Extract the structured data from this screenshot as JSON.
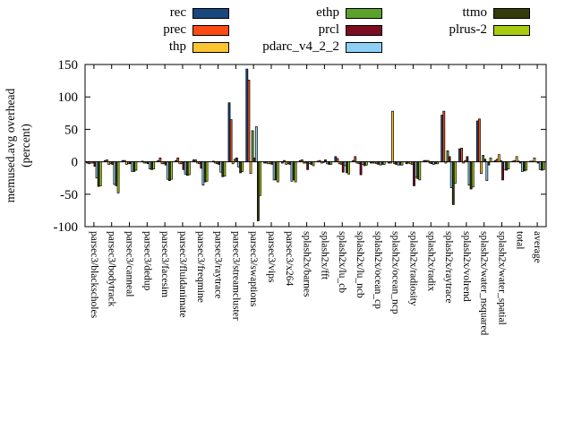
{
  "figure": {
    "background": "#ffffff",
    "y_axis_label_line1": "memused.avg overhead",
    "y_axis_label_line2": "(percent)"
  },
  "chart_data": {
    "type": "bar",
    "title": "",
    "xlabel": "",
    "ylabel": "memused.avg overhead (percent)",
    "ylim": [
      -100,
      150
    ],
    "yticks": [
      150,
      100,
      50,
      0,
      -50,
      -100
    ],
    "grid": false,
    "legend_position": "top-outside, 3 columns",
    "bar_border_color": "#000000",
    "categories": [
      "parsec3/blackscholes",
      "parsec3/bodytrack",
      "parsec3/canneal",
      "parsec3/dedup",
      "parsec3/facesim",
      "parsec3/fluidanimate",
      "parsec3/freqmine",
      "parsec3/raytrace",
      "parsec3/streamcluster",
      "parsec3/swaptions",
      "parsec3/vips",
      "parsec3/x264",
      "splash2x/barnes",
      "splash2x/fft",
      "splash2x/lu_cb",
      "splash2x/lu_ncb",
      "splash2x/ocean_cp",
      "splash2x/ocean_ncp",
      "splash2x/radiosity",
      "splash2x/radix",
      "splash2x/raytrace",
      "splash2x/volrend",
      "splash2x/water_nsquared",
      "splash2x/water_spatial",
      "total",
      "average"
    ],
    "series": [
      {
        "name": "rec",
        "color": "#19477d",
        "values": [
          -2,
          2,
          2,
          0,
          2,
          2,
          3,
          0,
          91,
          143,
          -2,
          -2,
          2,
          1,
          8,
          2,
          -2,
          -2,
          -3,
          2,
          72,
          20,
          63,
          2,
          1,
          1
        ]
      },
      {
        "name": "prec",
        "color": "#fc4b13",
        "values": [
          -3,
          3,
          2,
          1,
          6,
          6,
          3,
          1,
          65,
          126,
          -2,
          2,
          3,
          2,
          5,
          8,
          -2,
          -2,
          -2,
          2,
          78,
          21,
          66,
          4,
          2,
          1
        ]
      },
      {
        "name": "thp",
        "color": "#fdc432",
        "values": [
          -2,
          -4,
          -4,
          -2,
          -3,
          -3,
          -2,
          -2,
          -3,
          -18,
          -3,
          -4,
          -2,
          -2,
          -3,
          -2,
          -2,
          78,
          -3,
          2,
          -2,
          -2,
          -18,
          11,
          8,
          6
        ]
      },
      {
        "name": "ethp",
        "color": "#5aa22b",
        "values": [
          -2,
          -3,
          -3,
          -2,
          -3,
          -3,
          -3,
          -3,
          4,
          48,
          -3,
          -3,
          -2,
          -1,
          -4,
          -3,
          -3,
          -3,
          -4,
          -2,
          17,
          2,
          10,
          2,
          1,
          0
        ]
      },
      {
        "name": "prcl",
        "color": "#7c0c22",
        "values": [
          -7,
          -4,
          -3,
          -3,
          -5,
          -12,
          -10,
          -4,
          6,
          6,
          -4,
          -4,
          -12,
          3,
          -16,
          -20,
          -4,
          -4,
          -37,
          -3,
          8,
          8,
          4,
          -28,
          -2,
          -2
        ]
      },
      {
        "name": "pdarc_v4_2_2",
        "color": "#8ed0f5",
        "values": [
          -25,
          -35,
          -15,
          -11,
          -27,
          -19,
          -36,
          -16,
          -8,
          54,
          -28,
          -30,
          -3,
          -3,
          -6,
          -4,
          -5,
          -5,
          -24,
          -4,
          -40,
          -36,
          -29,
          -12,
          -15,
          -12
        ]
      },
      {
        "name": "ttmo",
        "color": "#343b0b",
        "values": [
          -38,
          -37,
          -15,
          -12,
          -29,
          -21,
          -31,
          -23,
          -17,
          -91,
          -28,
          -28,
          -4,
          -4,
          -17,
          -6,
          -4,
          -5,
          -26,
          -3,
          -66,
          -42,
          -5,
          -13,
          -14,
          -13
        ]
      },
      {
        "name": "plrus-2",
        "color": "#a9cb10",
        "values": [
          -37,
          -48,
          -13,
          -11,
          -27,
          -20,
          -30,
          -22,
          -15,
          -52,
          -31,
          -31,
          -6,
          -4,
          -19,
          -5,
          -4,
          -5,
          -28,
          -3,
          -33,
          -39,
          6,
          -11,
          -13,
          -12
        ]
      }
    ]
  }
}
